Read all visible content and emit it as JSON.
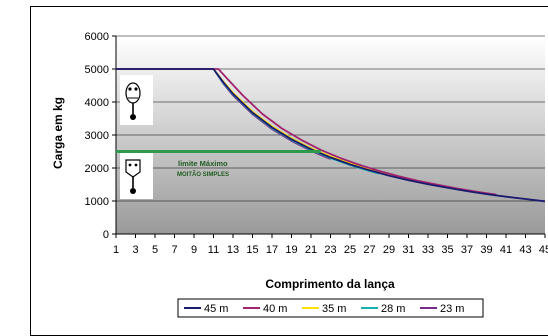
{
  "chart_data": {
    "type": "line",
    "title": "",
    "xlabel": "Comprimento da lança",
    "ylabel": "Carga em kg",
    "x_ticks": [
      1,
      3,
      5,
      7,
      9,
      11,
      13,
      15,
      17,
      19,
      21,
      23,
      25,
      27,
      29,
      31,
      33,
      35,
      37,
      39,
      41,
      43,
      45
    ],
    "ylim": [
      0,
      6000
    ],
    "y_ticks": [
      0,
      1000,
      2000,
      3000,
      4000,
      5000,
      6000
    ],
    "grid": "horizontal",
    "background": "gray-gradient",
    "legend_position": "bottom",
    "series": [
      {
        "name": "45 m",
        "color": "#1a1a6e",
        "points": [
          [
            1,
            5000
          ],
          [
            11,
            5000
          ],
          [
            12,
            4600
          ],
          [
            13,
            4250
          ],
          [
            15,
            3680
          ],
          [
            17,
            3230
          ],
          [
            19,
            2870
          ],
          [
            21,
            2570
          ],
          [
            23,
            2320
          ],
          [
            25,
            2110
          ],
          [
            27,
            1930
          ],
          [
            29,
            1770
          ],
          [
            31,
            1630
          ],
          [
            33,
            1510
          ],
          [
            35,
            1400
          ],
          [
            37,
            1300
          ],
          [
            39,
            1210
          ],
          [
            41,
            1130
          ],
          [
            43,
            1060
          ],
          [
            45,
            990
          ]
        ]
      },
      {
        "name": "40 m",
        "color": "#a0246e",
        "points": [
          [
            1,
            5000
          ],
          [
            11.5,
            5000
          ],
          [
            12.5,
            4680
          ],
          [
            14,
            4200
          ],
          [
            16,
            3640
          ],
          [
            18,
            3200
          ],
          [
            20,
            2850
          ],
          [
            22,
            2550
          ],
          [
            24,
            2300
          ],
          [
            26,
            2090
          ],
          [
            28,
            1910
          ],
          [
            30,
            1750
          ],
          [
            32,
            1610
          ],
          [
            34,
            1490
          ],
          [
            36,
            1380
          ],
          [
            38,
            1280
          ],
          [
            40,
            1190
          ]
        ]
      },
      {
        "name": "35 m",
        "color": "#ffe000",
        "points": [
          [
            1,
            5000
          ],
          [
            11,
            5000
          ],
          [
            12,
            4620
          ],
          [
            13,
            4280
          ],
          [
            15,
            3710
          ],
          [
            17,
            3260
          ],
          [
            19,
            2900
          ],
          [
            21,
            2600
          ],
          [
            23,
            2350
          ],
          [
            25,
            2140
          ],
          [
            27,
            1960
          ],
          [
            29,
            1800
          ],
          [
            31,
            1660
          ],
          [
            33,
            1540
          ],
          [
            34,
            1480
          ]
        ]
      },
      {
        "name": "28 m",
        "color": "#18b0b0",
        "points": [
          [
            1,
            5000
          ],
          [
            11,
            5000
          ],
          [
            12,
            4580
          ],
          [
            13,
            4230
          ],
          [
            15,
            3660
          ],
          [
            17,
            3210
          ],
          [
            19,
            2850
          ],
          [
            21,
            2550
          ],
          [
            23,
            2300
          ],
          [
            25,
            2090
          ],
          [
            27,
            1910
          ],
          [
            28,
            1830
          ]
        ]
      },
      {
        "name": "23 m",
        "color": "#7a2a8a",
        "points": [
          [
            1,
            5000
          ],
          [
            11,
            5000
          ],
          [
            12,
            4560
          ],
          [
            13,
            4200
          ],
          [
            15,
            3630
          ],
          [
            17,
            3180
          ],
          [
            19,
            2820
          ],
          [
            21,
            2520
          ],
          [
            22,
            2390
          ],
          [
            23,
            2270
          ]
        ]
      }
    ],
    "limit_line": {
      "y": 2500,
      "x_start": 1,
      "x_end": 22,
      "color": "#2e9a4a"
    },
    "annotations": {
      "line1": "limite Máximo",
      "line2": "MOITÃO SIMPLES"
    }
  }
}
